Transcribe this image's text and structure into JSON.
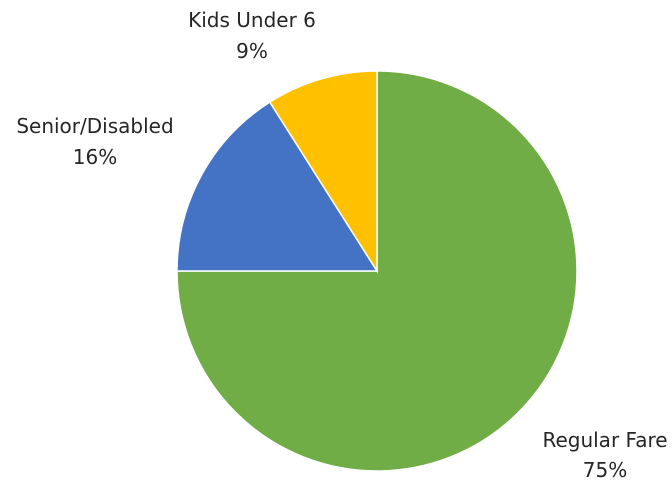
{
  "chart_data": {
    "type": "pie",
    "title": "",
    "start_angle_deg": 0,
    "direction": "clockwise",
    "slices": [
      {
        "name": "Regular Fare",
        "value": 75,
        "label": "75%",
        "color": "#70AD47"
      },
      {
        "name": "Senior/Disabled",
        "value": 16,
        "label": "16%",
        "color": "#4472C4"
      },
      {
        "name": "Kids Under 6",
        "value": 9,
        "label": "9%",
        "color": "#FFC000"
      }
    ]
  }
}
